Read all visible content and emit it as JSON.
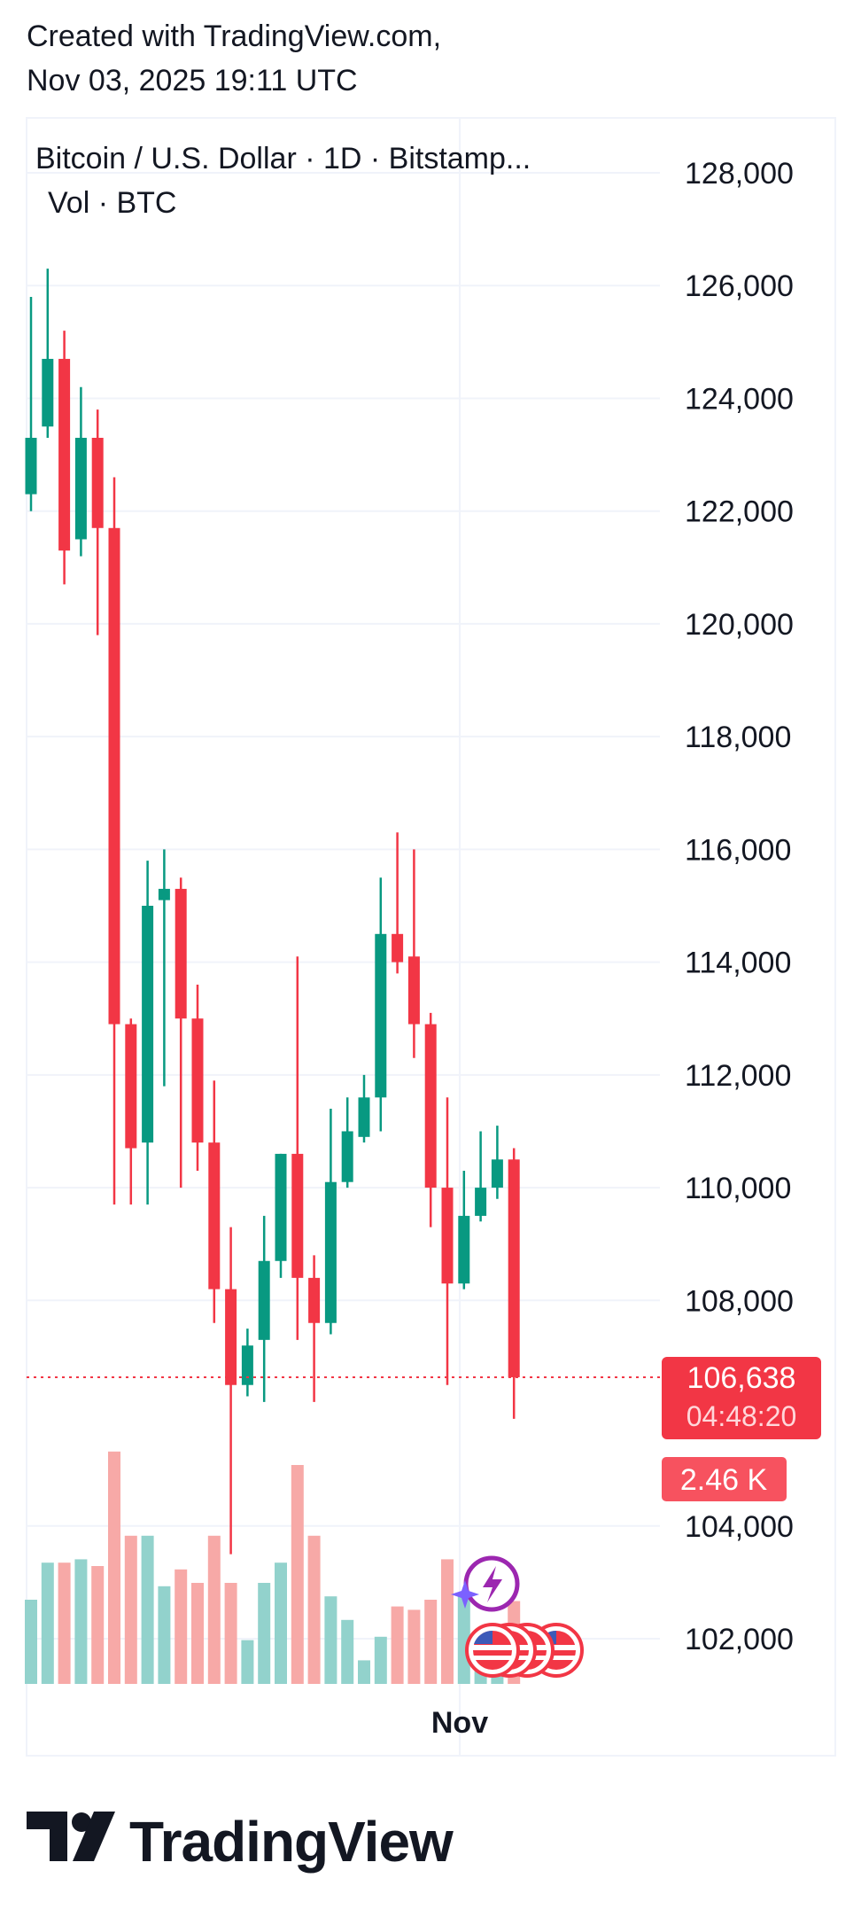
{
  "header": {
    "line1": "Created with TradingView.com,",
    "line2": "Nov 03, 2025 19:11 UTC"
  },
  "legend": {
    "symbol": "Bitcoin / U.S. Dollar · 1D · Bitstamp...",
    "volume": "Vol · BTC"
  },
  "colors": {
    "up": "#089981",
    "down": "#f23645",
    "up_volume": "#92d2cc",
    "down_volume": "#f7a9a7",
    "grid": "#f0f3fa",
    "price_tag": "#f23645",
    "volume_tag": "#f7525f",
    "event_lightning": "#9c27b0"
  },
  "chart_data": {
    "type": "candlestick",
    "x_label": "Nov",
    "y_ticks": [
      128000,
      126000,
      124000,
      122000,
      120000,
      118000,
      116000,
      114000,
      112000,
      110000,
      108000,
      104000,
      102000
    ],
    "ylim": [
      101200,
      128800
    ],
    "grid": true,
    "last_price": "106,638",
    "countdown": "04:48:20",
    "volume_label": "2.46 K",
    "candles": [
      {
        "o": 122300,
        "h": 125800,
        "l": 122000,
        "c": 123300
      },
      {
        "o": 123500,
        "h": 126300,
        "l": 123300,
        "c": 124700
      },
      {
        "o": 124700,
        "h": 125200,
        "l": 120700,
        "c": 121300
      },
      {
        "o": 121500,
        "h": 124200,
        "l": 121200,
        "c": 123300
      },
      {
        "o": 123300,
        "h": 123800,
        "l": 119800,
        "c": 121700
      },
      {
        "o": 121700,
        "h": 122600,
        "l": 109700,
        "c": 112900
      },
      {
        "o": 112900,
        "h": 113000,
        "l": 109700,
        "c": 110700
      },
      {
        "o": 110800,
        "h": 115800,
        "l": 109700,
        "c": 115000
      },
      {
        "o": 115100,
        "h": 116000,
        "l": 111800,
        "c": 115300
      },
      {
        "o": 115300,
        "h": 115500,
        "l": 110000,
        "c": 113000
      },
      {
        "o": 113000,
        "h": 113600,
        "l": 110300,
        "c": 110800
      },
      {
        "o": 110800,
        "h": 111900,
        "l": 107600,
        "c": 108200
      },
      {
        "o": 108200,
        "h": 109300,
        "l": 103500,
        "c": 106500
      },
      {
        "o": 106500,
        "h": 107500,
        "l": 106300,
        "c": 107200
      },
      {
        "o": 107300,
        "h": 109500,
        "l": 106200,
        "c": 108700
      },
      {
        "o": 108700,
        "h": 110600,
        "l": 108400,
        "c": 110600
      },
      {
        "o": 110600,
        "h": 114100,
        "l": 107300,
        "c": 108400
      },
      {
        "o": 108400,
        "h": 108800,
        "l": 106200,
        "c": 107600
      },
      {
        "o": 107600,
        "h": 111400,
        "l": 107400,
        "c": 110100
      },
      {
        "o": 110100,
        "h": 111600,
        "l": 110000,
        "c": 111000
      },
      {
        "o": 110900,
        "h": 112000,
        "l": 110800,
        "c": 111600
      },
      {
        "o": 111600,
        "h": 115500,
        "l": 111000,
        "c": 114500
      },
      {
        "o": 114500,
        "h": 116300,
        "l": 113800,
        "c": 114000
      },
      {
        "o": 114100,
        "h": 116000,
        "l": 112300,
        "c": 112900
      },
      {
        "o": 112900,
        "h": 113100,
        "l": 109300,
        "c": 110000
      },
      {
        "o": 110000,
        "h": 111600,
        "l": 106500,
        "c": 108300
      },
      {
        "o": 108300,
        "h": 110300,
        "l": 108200,
        "c": 109500
      },
      {
        "o": 109500,
        "h": 111000,
        "l": 109400,
        "c": 110000
      },
      {
        "o": 110000,
        "h": 111100,
        "l": 109800,
        "c": 110500
      },
      {
        "o": 110500,
        "h": 110700,
        "l": 105900,
        "c": 106638
      }
    ],
    "volumes": [
      2.5,
      3.6,
      3.6,
      3.7,
      3.5,
      6.9,
      4.4,
      4.4,
      2.9,
      3.4,
      3.0,
      4.4,
      3.0,
      1.3,
      3.0,
      3.6,
      6.5,
      4.4,
      2.6,
      1.9,
      0.7,
      1.4,
      2.3,
      2.2,
      2.5,
      3.7,
      2.7,
      0.9,
      1.2,
      2.46
    ]
  }
}
